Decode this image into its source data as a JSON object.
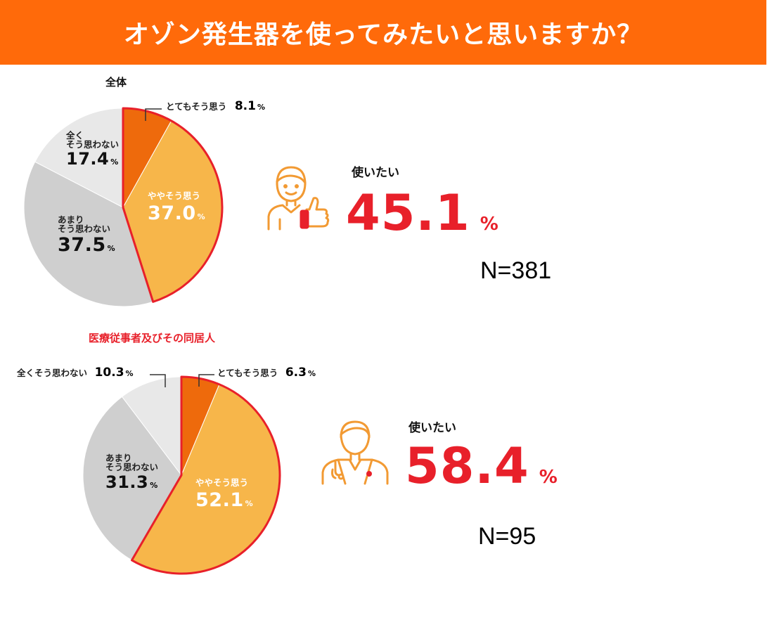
{
  "header": {
    "title": "オゾン発生器を使ってみたいと思いますか？"
  },
  "chart_data": [
    {
      "type": "pie",
      "title": "全体",
      "categories": [
        "とてもそう思う",
        "ややそう思う",
        "あまりそう思わない",
        "全くそう思わない"
      ],
      "values": [
        8.1,
        37.0,
        37.5,
        17.4
      ],
      "colors": [
        "#ee6a0c",
        "#f7b64a",
        "#cfcfcf",
        "#e8e8e8"
      ],
      "display": {
        "very_label": "とてもそう思う",
        "very_value": "8.1",
        "somewhat_label": "ややそう思う",
        "somewhat_value": "37.0",
        "notvery_label1": "あまり",
        "notvery_label2": "そう思わない",
        "notvery_value": "37.5",
        "notatall_label1": "全く",
        "notatall_label2": "そう思わない",
        "notatall_value": "17.4"
      },
      "want_label": "使いたい",
      "want_value": "45.1",
      "n": "N=381"
    },
    {
      "type": "pie",
      "title": "医療従事者及びその同居人",
      "categories": [
        "とてもそう思う",
        "ややそう思う",
        "あまりそう思わない",
        "全くそう思わない"
      ],
      "values": [
        6.3,
        52.1,
        31.3,
        10.3
      ],
      "colors": [
        "#ee6a0c",
        "#f7b64a",
        "#cfcfcf",
        "#e8e8e8"
      ],
      "display": {
        "very_label": "とてもそう思う",
        "very_value": "6.3",
        "somewhat_label": "ややそう思う",
        "somewhat_value": "52.1",
        "notvery_label1": "あまり",
        "notvery_label2": "そう思わない",
        "notvery_value": "31.3",
        "notatall_label": "全くそう思わない",
        "notatall_value": "10.3"
      },
      "want_label": "使いたい",
      "want_value": "58.4",
      "n": "N=95"
    }
  ],
  "unit": "%",
  "colors": {
    "banner": "#ff6a0a",
    "accent_red": "#e8202a",
    "icon_orange": "#f29a33"
  }
}
